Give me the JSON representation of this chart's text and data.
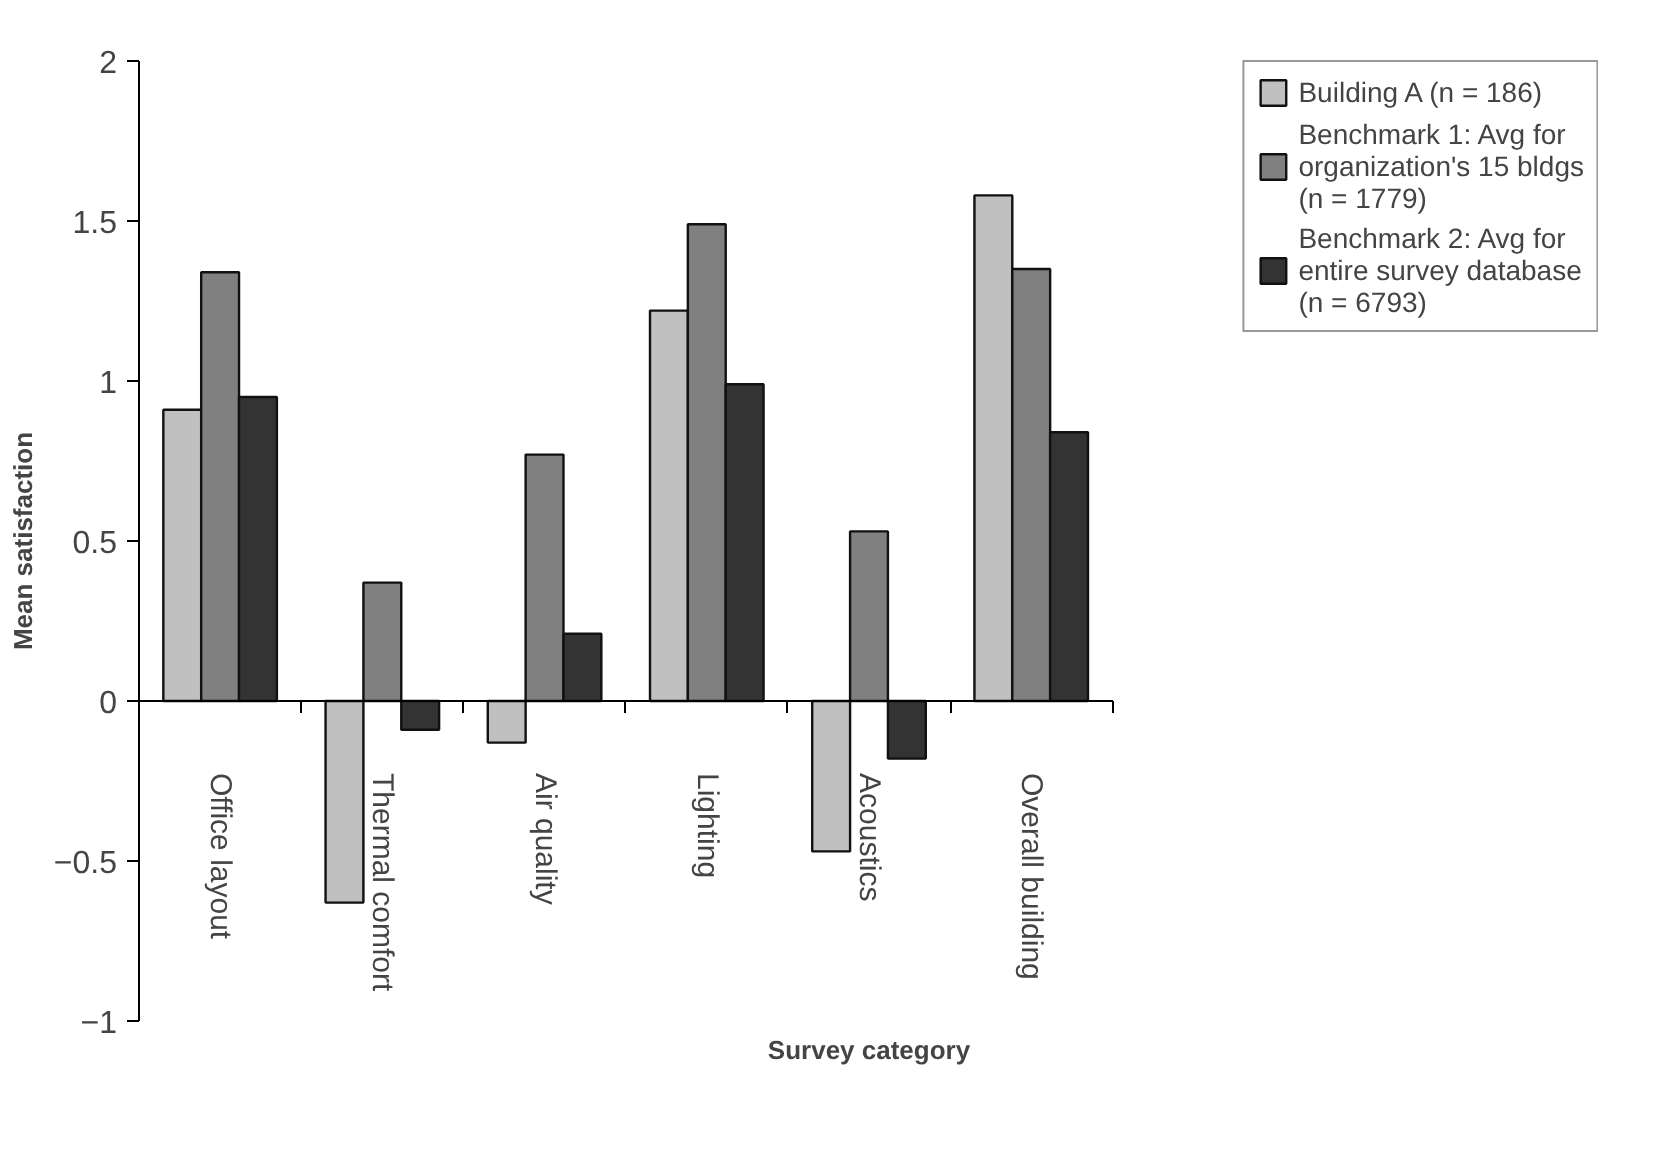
{
  "chart_data": {
    "type": "bar",
    "xlabel": "Survey category",
    "ylabel": "Mean satisfaction",
    "categories": [
      "Office layout",
      "Thermal comfort",
      "Air quality",
      "Lighting",
      "Acoustics",
      "Overall building"
    ],
    "series": [
      {
        "name": "Building A (n = 186)",
        "color": "#c0c0c0",
        "values": [
          0.91,
          -0.63,
          -0.13,
          1.22,
          -0.47,
          1.58
        ]
      },
      {
        "name": "Benchmark 1: Avg for organization's 15 bldgs (n = 1779)",
        "color": "#808080",
        "values": [
          1.34,
          0.37,
          0.77,
          1.49,
          0.53,
          1.35
        ]
      },
      {
        "name": "Benchmark 2: Avg for entire survey database (n = 6793)",
        "color": "#333333",
        "values": [
          0.95,
          -0.09,
          0.21,
          0.99,
          -0.18,
          0.84
        ]
      }
    ],
    "ylim": [
      -1,
      2
    ],
    "yticks": [
      {
        "value": -1,
        "label": "−1"
      },
      {
        "value": -0.5,
        "label": "−0.5"
      },
      0,
      0.5,
      1,
      1.5,
      2
    ],
    "legend": "top right"
  }
}
